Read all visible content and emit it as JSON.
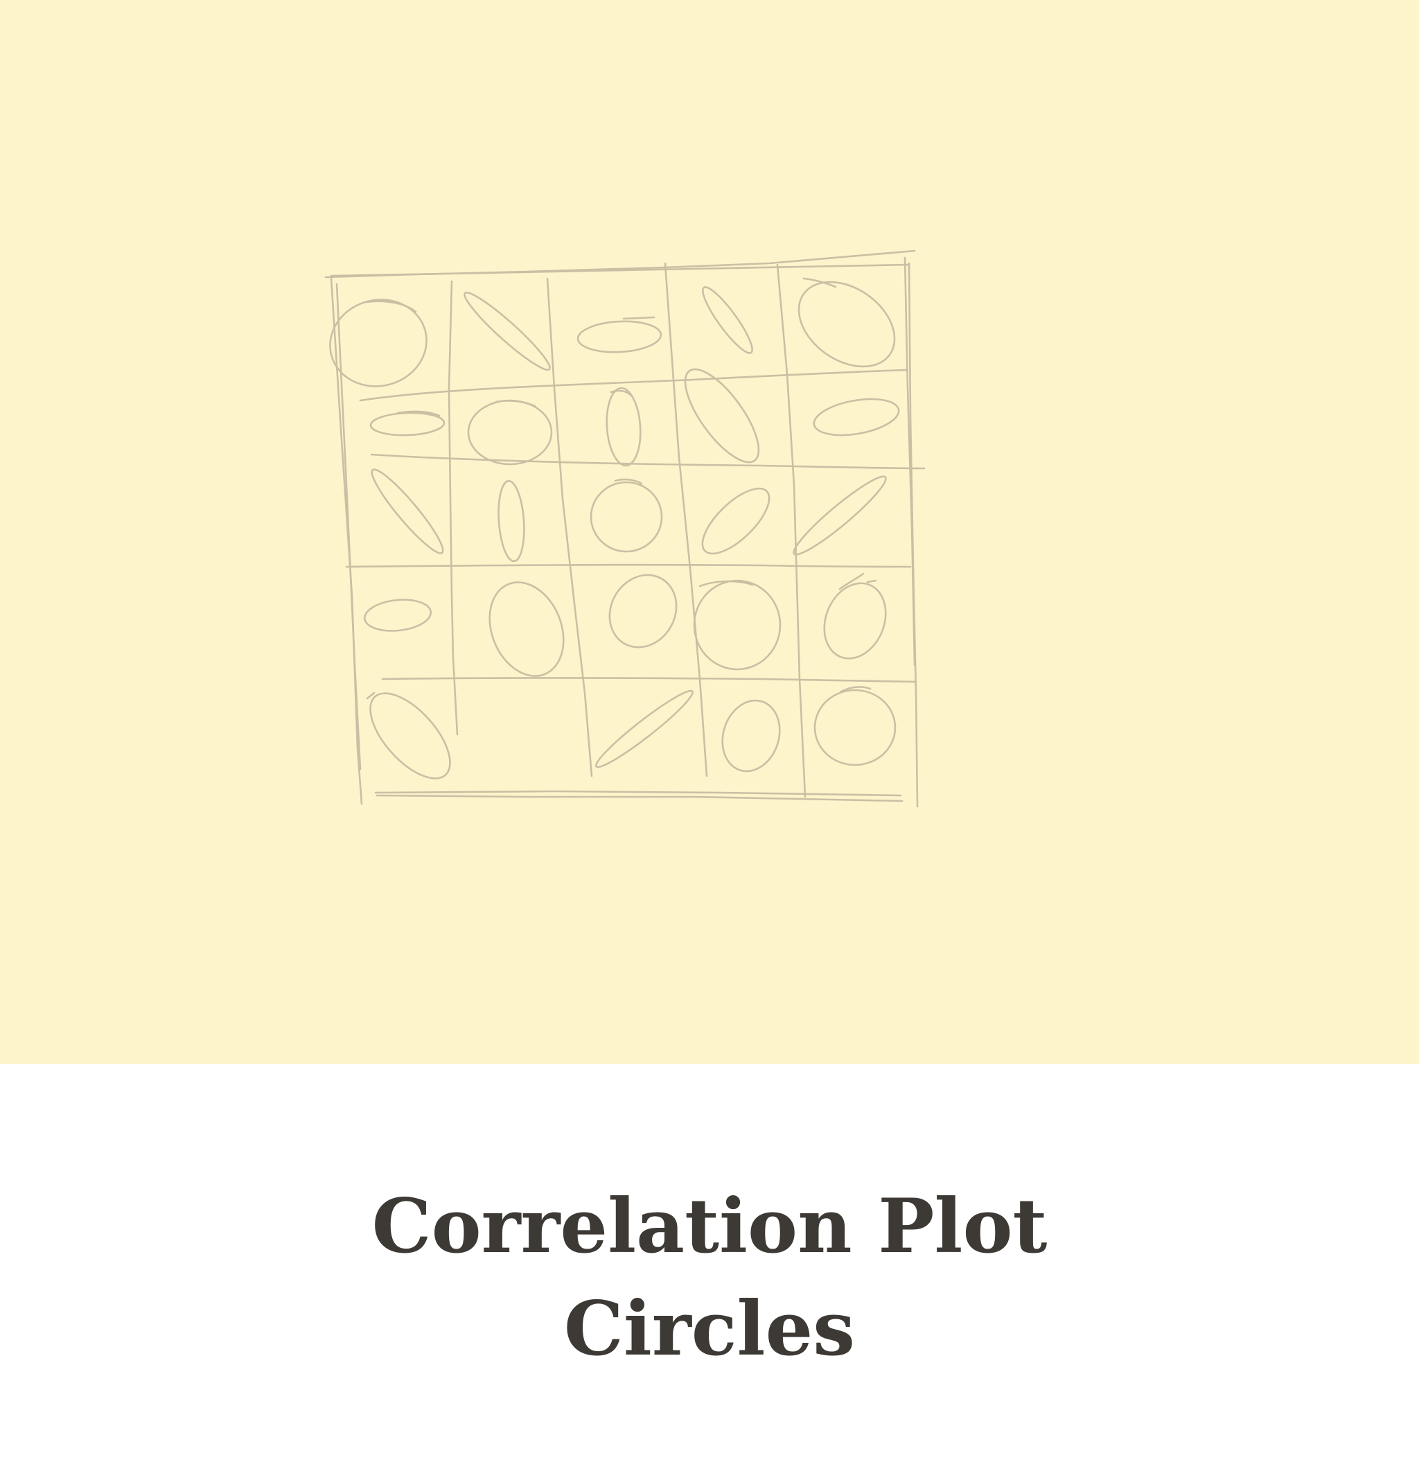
{
  "caption": {
    "title": "Correlation Plot\nCircles"
  },
  "colors": {
    "panel_background": "#fdf4cc",
    "caption_background": "#ffffff",
    "pencil_stroke": "#c9c0a4",
    "title_text": "#3d3935"
  },
  "sketch": {
    "description_type": "hand-drawn pencil sketch",
    "grid_rows": 5,
    "grid_columns": 5
  }
}
